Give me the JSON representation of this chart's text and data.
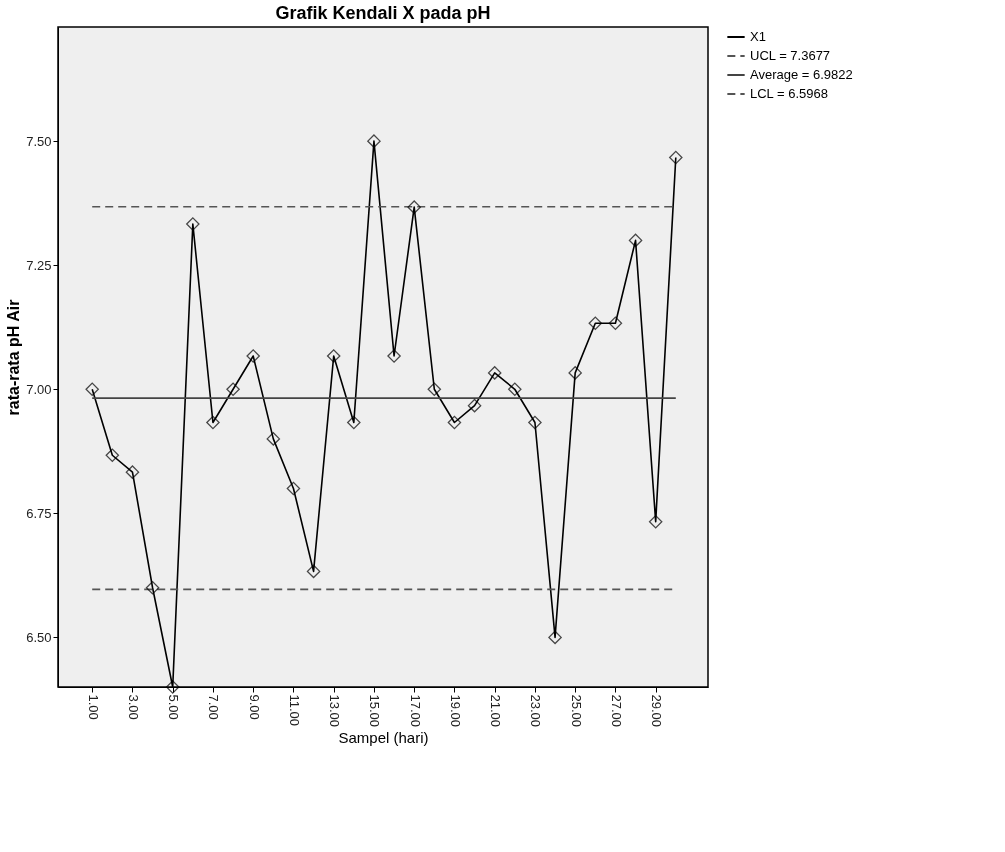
{
  "chart_data": {
    "type": "line",
    "title": "Grafik Kendali X pada pH",
    "xlabel": "Sampel (hari)",
    "ylabel": "rata-rata pH Air",
    "x": [
      1,
      2,
      3,
      4,
      5,
      6,
      7,
      8,
      9,
      10,
      11,
      12,
      13,
      14,
      15,
      16,
      17,
      18,
      19,
      20,
      21,
      22,
      23,
      24,
      25,
      26,
      27,
      28,
      29,
      30
    ],
    "series": [
      {
        "name": "X1",
        "color": "#000000",
        "values": [
          7.0,
          6.867,
          6.833,
          6.6,
          6.4,
          7.333,
          6.933,
          7.0,
          7.067,
          6.9,
          6.8,
          6.633,
          7.067,
          6.933,
          7.5,
          7.067,
          7.367,
          7.0,
          6.933,
          6.967,
          7.033,
          7.0,
          6.933,
          6.5,
          7.033,
          7.133,
          7.133,
          7.3,
          6.733,
          7.467
        ]
      }
    ],
    "ref_lines": [
      {
        "axis": "y",
        "value": 7.3677,
        "label": "UCL = 7.3677",
        "color": "#555555",
        "line_style": "dashed"
      },
      {
        "axis": "y",
        "value": 6.9822,
        "label": "Average = 6.9822",
        "color": "#444444",
        "line_style": "solid"
      },
      {
        "axis": "y",
        "value": 6.5968,
        "label": "LCL = 6.5968",
        "color": "#555555",
        "line_style": "dashed"
      }
    ],
    "xlim": [
      -0.7,
      31.6
    ],
    "ylim": [
      6.4,
      7.73
    ],
    "xticks": [
      {
        "value": 1,
        "label": "1.00"
      },
      {
        "value": 3,
        "label": "3.00"
      },
      {
        "value": 5,
        "label": "5.00"
      },
      {
        "value": 7,
        "label": "7.00"
      },
      {
        "value": 9,
        "label": "9.00"
      },
      {
        "value": 11,
        "label": "11.00"
      },
      {
        "value": 13,
        "label": "13.00"
      },
      {
        "value": 15,
        "label": "15.00"
      },
      {
        "value": 17,
        "label": "17.00"
      },
      {
        "value": 19,
        "label": "19.00"
      },
      {
        "value": 21,
        "label": "21.00"
      },
      {
        "value": 23,
        "label": "23.00"
      },
      {
        "value": 25,
        "label": "25.00"
      },
      {
        "value": 27,
        "label": "27.00"
      },
      {
        "value": 29,
        "label": "29.00"
      }
    ],
    "yticks": [
      {
        "value": 6.5,
        "label": "6.50"
      },
      {
        "value": 6.75,
        "label": "6.75"
      },
      {
        "value": 7.0,
        "label": "7.00"
      },
      {
        "value": 7.25,
        "label": "7.25"
      },
      {
        "value": 7.5,
        "label": "7.50"
      }
    ],
    "marker": "diamond",
    "line_style": "solid",
    "legend": "top right",
    "grid": false
  }
}
